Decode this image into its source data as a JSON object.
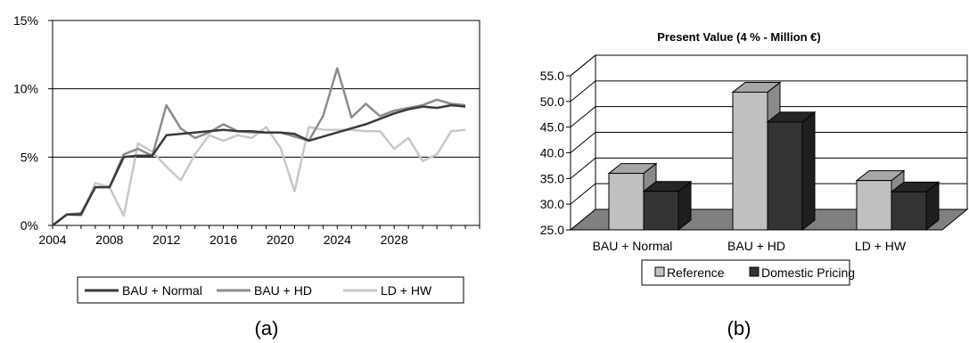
{
  "chart_data": [
    {
      "type": "line",
      "panel_label": "(a)",
      "x_tick_labels": [
        "2004",
        "2008",
        "2012",
        "2016",
        "2020",
        "2024",
        "2028"
      ],
      "y_tick_labels": [
        "0%",
        "5%",
        "10%",
        "15%"
      ],
      "xlim": [
        2004,
        2034
      ],
      "ylim": [
        0,
        15
      ],
      "y_unit": "%",
      "grid": "horizontal",
      "legend_position": "bottom",
      "x": [
        2004,
        2005,
        2006,
        2007,
        2008,
        2009,
        2010,
        2011,
        2012,
        2013,
        2014,
        2015,
        2016,
        2017,
        2018,
        2019,
        2020,
        2021,
        2022,
        2023,
        2024,
        2025,
        2026,
        2027,
        2028,
        2029,
        2030,
        2031,
        2032,
        2033
      ],
      "series": [
        {
          "name": "BAU + Normal",
          "color": "#3a3a3a",
          "values": [
            0.0,
            0.8,
            0.8,
            2.8,
            2.8,
            5.0,
            5.1,
            5.1,
            6.6,
            6.7,
            6.8,
            6.9,
            7.0,
            6.9,
            6.9,
            6.8,
            6.8,
            6.7,
            6.2,
            6.5,
            6.8,
            7.1,
            7.4,
            7.8,
            8.2,
            8.5,
            8.7,
            8.6,
            8.8,
            8.7
          ]
        },
        {
          "name": "BAU + HD",
          "color": "#8c8c8c",
          "values": [
            0.0,
            0.8,
            0.9,
            2.8,
            2.8,
            5.2,
            5.6,
            5.1,
            8.8,
            7.1,
            6.4,
            6.8,
            7.4,
            6.9,
            6.8,
            6.8,
            6.8,
            6.5,
            6.2,
            8.0,
            11.5,
            7.9,
            8.9,
            8.0,
            8.4,
            8.6,
            8.8,
            9.2,
            8.9,
            8.8
          ]
        },
        {
          "name": "LD + HW",
          "color": "#c8c8c8",
          "values": [
            0.0,
            0.8,
            0.7,
            3.1,
            2.8,
            0.7,
            6.0,
            5.4,
            4.3,
            3.3,
            5.2,
            6.6,
            6.2,
            6.6,
            6.4,
            7.2,
            5.7,
            2.5,
            7.2,
            7.0,
            7.0,
            7.0,
            6.9,
            6.9,
            5.6,
            6.4,
            4.7,
            5.2,
            6.9,
            7.0
          ]
        }
      ]
    },
    {
      "type": "bar",
      "panel_label": "(b)",
      "title": "Present Value (4 % - Million €)",
      "categories": [
        "BAU + Normal",
        "BAU + HD",
        "LD + HW"
      ],
      "y_tick_labels": [
        "25.0",
        "30.0",
        "35.0",
        "40.0",
        "45.0",
        "50.0",
        "55.0"
      ],
      "ylim": [
        25,
        55
      ],
      "grid": "horizontal",
      "legend_position": "bottom",
      "style": "3d-clustered",
      "series": [
        {
          "name": "Reference",
          "color": "#c0c0c0",
          "values": [
            36.0,
            51.8,
            34.6
          ]
        },
        {
          "name": "Domestic Pricing",
          "color": "#333333",
          "values": [
            32.5,
            46.0,
            32.4
          ]
        }
      ]
    }
  ]
}
